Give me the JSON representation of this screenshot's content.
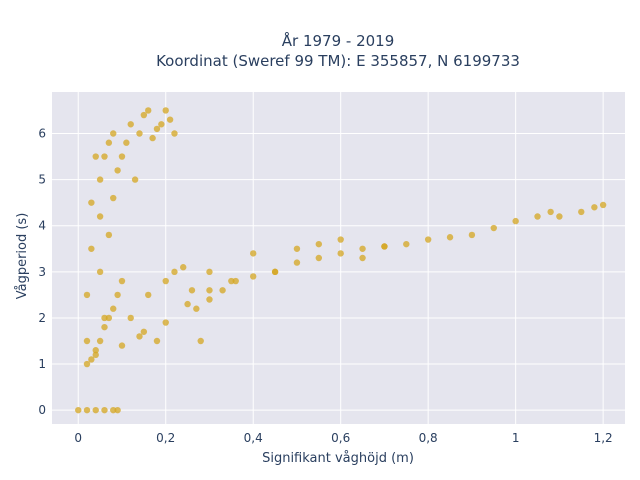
{
  "chart_data": {
    "type": "scatter",
    "title": "År 1979 - 2019",
    "subtitle": "Koordinat (Sweref 99 TM): E 355857, N 6199733",
    "xlabel": "Signifikant våghöjd (m)",
    "ylabel": "Vågperiod (s)",
    "xlim": [
      -0.06,
      1.25
    ],
    "ylim": [
      -0.3,
      6.9
    ],
    "x_ticks": [
      0,
      0.2,
      0.4,
      0.6,
      0.8,
      1,
      1.2
    ],
    "x_tick_labels": [
      "0",
      "0,2",
      "0,4",
      "0,6",
      "0,8",
      "1",
      "1,2"
    ],
    "y_ticks": [
      0,
      1,
      2,
      3,
      4,
      5,
      6
    ],
    "y_tick_labels": [
      "0",
      "1",
      "2",
      "3",
      "4",
      "5",
      "6"
    ],
    "grid": true,
    "point_color": "#d4a520",
    "background_color": "#e5e5ee",
    "points_x": [
      0.0,
      0.02,
      0.04,
      0.06,
      0.08,
      0.09,
      0.02,
      0.02,
      0.03,
      0.03,
      0.04,
      0.04,
      0.05,
      0.05,
      0.05,
      0.06,
      0.06,
      0.07,
      0.07,
      0.08,
      0.08,
      0.09,
      0.1,
      0.11,
      0.12,
      0.13,
      0.14,
      0.15,
      0.16,
      0.17,
      0.18,
      0.19,
      0.2,
      0.21,
      0.22,
      0.02,
      0.03,
      0.04,
      0.05,
      0.06,
      0.07,
      0.08,
      0.09,
      0.1,
      0.12,
      0.14,
      0.16,
      0.18,
      0.2,
      0.22,
      0.24,
      0.26,
      0.28,
      0.3,
      0.25,
      0.27,
      0.3,
      0.33,
      0.36,
      0.4,
      0.45,
      0.5,
      0.55,
      0.6,
      0.65,
      0.7,
      0.75,
      0.8,
      0.85,
      0.9,
      0.95,
      1.0,
      1.05,
      1.08,
      1.1,
      1.15,
      1.18,
      1.2,
      0.1,
      0.15,
      0.2,
      0.3,
      0.35,
      0.4,
      0.45,
      0.5,
      0.55,
      0.6,
      0.65,
      0.7
    ],
    "points_y": [
      0.0,
      0.0,
      0.0,
      0.0,
      0.0,
      0.0,
      1.5,
      2.5,
      3.5,
      4.5,
      5.5,
      1.2,
      3.0,
      4.2,
      5.0,
      2.0,
      5.5,
      3.8,
      5.8,
      4.6,
      6.0,
      5.2,
      5.5,
      5.8,
      6.2,
      5.0,
      6.0,
      6.4,
      6.5,
      5.9,
      6.1,
      6.2,
      6.5,
      6.3,
      6.0,
      1.0,
      1.1,
      1.3,
      1.5,
      1.8,
      2.0,
      2.2,
      2.5,
      2.8,
      2.0,
      1.6,
      2.5,
      1.5,
      2.8,
      3.0,
      3.1,
      2.6,
      1.5,
      3.0,
      2.3,
      2.2,
      2.4,
      2.6,
      2.8,
      2.9,
      3.0,
      3.2,
      3.3,
      3.4,
      3.5,
      3.55,
      3.6,
      3.7,
      3.75,
      3.8,
      3.95,
      4.1,
      4.2,
      4.3,
      4.2,
      4.3,
      4.4,
      4.45,
      1.4,
      1.7,
      1.9,
      2.6,
      2.8,
      3.4,
      3.0,
      3.5,
      3.6,
      3.7,
      3.3,
      3.55
    ]
  }
}
